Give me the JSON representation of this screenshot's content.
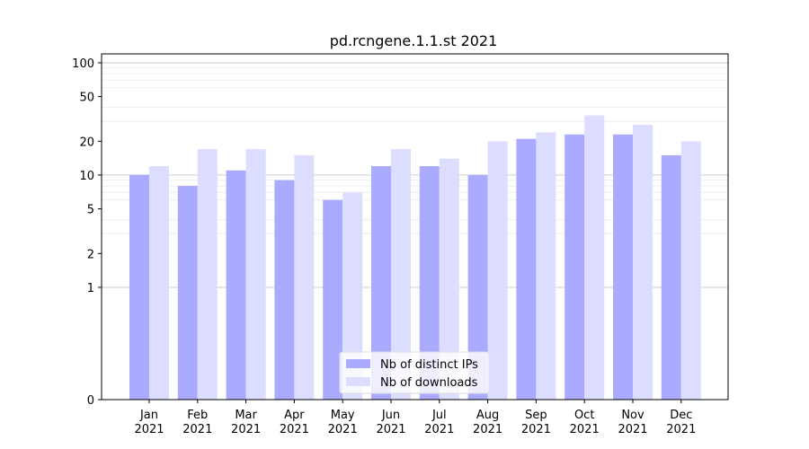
{
  "chart_data": {
    "type": "bar",
    "title": "pd.rcngene.1.1.st 2021",
    "xlabel": "",
    "ylabel": "",
    "scale": "symlog",
    "ylim": [
      0,
      120
    ],
    "y_ticks": [
      0,
      1,
      2,
      5,
      10,
      20,
      50,
      100
    ],
    "y_tick_labels": [
      "0",
      "1",
      "2",
      "5",
      "10",
      "20",
      "50",
      "100"
    ],
    "categories": [
      "Jan 2021",
      "Feb 2021",
      "Mar 2021",
      "Apr 2021",
      "May 2021",
      "Jun 2021",
      "Jul 2021",
      "Aug 2021",
      "Sep 2021",
      "Oct 2021",
      "Nov 2021",
      "Dec 2021"
    ],
    "category_lines": [
      [
        "Jan",
        "2021"
      ],
      [
        "Feb",
        "2021"
      ],
      [
        "Mar",
        "2021"
      ],
      [
        "Apr",
        "2021"
      ],
      [
        "May",
        "2021"
      ],
      [
        "Jun",
        "2021"
      ],
      [
        "Jul",
        "2021"
      ],
      [
        "Aug",
        "2021"
      ],
      [
        "Sep",
        "2021"
      ],
      [
        "Oct",
        "2021"
      ],
      [
        "Nov",
        "2021"
      ],
      [
        "Dec",
        "2021"
      ]
    ],
    "series": [
      {
        "name": "Nb of distinct IPs",
        "color": "#aaaaff",
        "values": [
          10,
          8,
          11,
          9,
          6,
          12,
          12,
          10,
          21,
          23,
          23,
          15
        ]
      },
      {
        "name": "Nb of downloads",
        "color": "#ddddff",
        "values": [
          12,
          17,
          17,
          15,
          7,
          17,
          14,
          20,
          24,
          34,
          28,
          20
        ]
      }
    ],
    "legend_position": "bottom-center",
    "grid": true
  }
}
